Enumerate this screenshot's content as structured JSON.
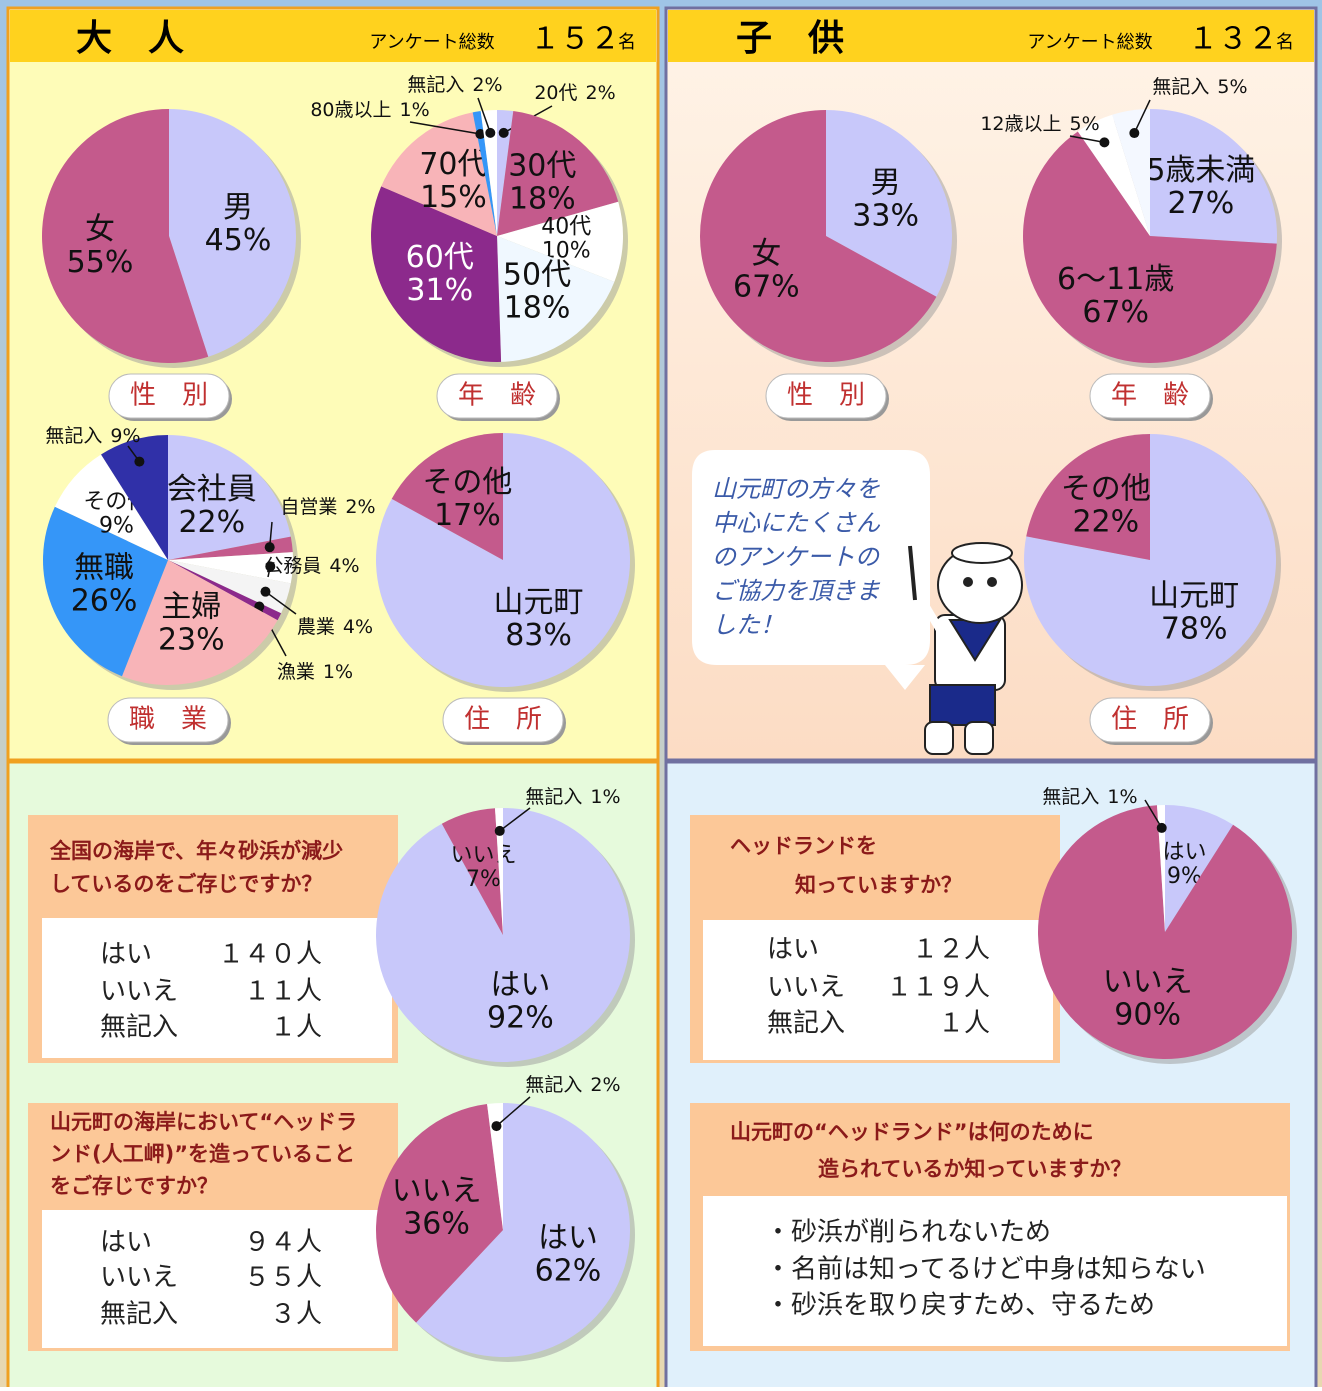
{
  "panels": {
    "adult": {
      "title": "大　人",
      "count_label": "アンケート総数",
      "count": "１５２",
      "unit": "名"
    },
    "child": {
      "title": "子　供",
      "count_label": "アンケート総数",
      "count": "１３２",
      "unit": "名"
    },
    "speech": [
      "山元町の方々を",
      "中心にたくさん",
      "のアンケートの",
      "ご協力を頂きま",
      "した！"
    ],
    "q1": {
      "lines": [
        "全国の海岸で、年々砂浜が減少",
        "しているのをご存じですか？"
      ],
      "rows": [
        [
          "はい",
          "１４０人"
        ],
        [
          "いいえ",
          "１１人"
        ],
        [
          "無記入",
          "１人"
        ]
      ]
    },
    "q2": {
      "lines": [
        "山元町の海岸において“ヘッドラ",
        "ンド(人工岬)”を造っていること",
        "をご存じですか？"
      ],
      "rows": [
        [
          "はい",
          "９４人"
        ],
        [
          "いいえ",
          "５５人"
        ],
        [
          "無記入",
          "３人"
        ]
      ]
    },
    "q3": {
      "lines": [
        "ヘッドランドを",
        "知っていますか？"
      ],
      "rows": [
        [
          "はい",
          "１２人"
        ],
        [
          "いいえ",
          "１１９人"
        ],
        [
          "無記入",
          "１人"
        ]
      ]
    },
    "q4": {
      "lines": [
        "山元町の“ヘッドランド”は何のために",
        "造られているか知っていますか？"
      ],
      "answers": [
        "・砂浜が削られないため",
        "・名前は知ってるけど中身は知らない",
        "・砂浜を取り戻すため、守るため"
      ]
    }
  },
  "chart_data": [
    {
      "type": "pie",
      "title": "性　別",
      "categories": [
        "男",
        "女"
      ],
      "values": [
        45,
        55
      ],
      "value_labels": [
        "45%",
        "55%"
      ],
      "colors": [
        "#c8c8fa",
        "#c45a8c"
      ]
    },
    {
      "type": "pie",
      "title": "年　齢",
      "categories": [
        "20代",
        "30代",
        "40代",
        "50代",
        "60代",
        "70代",
        "80歳以上",
        "無記入"
      ],
      "values": [
        2,
        18,
        10,
        18,
        31,
        15,
        1,
        2
      ],
      "value_labels": [
        "2%",
        "18%",
        "10%",
        "18%",
        "31%",
        "15%",
        "1%",
        "2%"
      ],
      "colors": [
        "#c8c8fa",
        "#c45a8c",
        "#ffffff",
        "#f0f8ff",
        "#8c2a8c",
        "#f8b4b8",
        "#3596f8",
        "#ffffff"
      ]
    },
    {
      "type": "pie",
      "title": "職　業",
      "categories": [
        "会社員",
        "自営業",
        "公務員",
        "農業",
        "漁業",
        "主婦",
        "無職",
        "その他",
        "無記入"
      ],
      "values": [
        22,
        2,
        4,
        4,
        1,
        23,
        26,
        9,
        9
      ],
      "value_labels": [
        "22%",
        "2%",
        "4%",
        "4%",
        "1%",
        "23%",
        "26%",
        "9%",
        "9%"
      ],
      "colors": [
        "#c8c8fa",
        "#c45a8c",
        "#ffffff",
        "#f4f4f4",
        "#8c2a8c",
        "#f8b4b8",
        "#3596f8",
        "#ffffff",
        "#3030a8"
      ]
    },
    {
      "type": "pie",
      "title": "住　所",
      "categories": [
        "山元町",
        "その他"
      ],
      "values": [
        83,
        17
      ],
      "value_labels": [
        "83%",
        "17%"
      ],
      "colors": [
        "#c8c8fa",
        "#c45a8c"
      ]
    },
    {
      "type": "pie",
      "title": "性　別",
      "categories": [
        "男",
        "女"
      ],
      "values": [
        33,
        67
      ],
      "value_labels": [
        "33%",
        "67%"
      ],
      "colors": [
        "#c8c8fa",
        "#c45a8c"
      ]
    },
    {
      "type": "pie",
      "title": "年　齢",
      "categories": [
        "5歳未満",
        "6～11歳",
        "12歳以上",
        "無記入"
      ],
      "values": [
        27,
        67,
        5,
        5
      ],
      "value_labels": [
        "27%",
        "67%",
        "5%",
        "5%"
      ],
      "colors": [
        "#c8c8fa",
        "#c45a8c",
        "#ffffff",
        "#f4f8ff"
      ]
    },
    {
      "type": "pie",
      "title": "住　所",
      "categories": [
        "山元町",
        "その他"
      ],
      "values": [
        78,
        22
      ],
      "value_labels": [
        "78%",
        "22%"
      ],
      "colors": [
        "#c8c8fa",
        "#c45a8c"
      ]
    },
    {
      "type": "pie",
      "categories": [
        "はい",
        "いいえ",
        "無記入"
      ],
      "values": [
        92,
        7,
        1
      ],
      "value_labels": [
        "92%",
        "7%",
        "1%"
      ],
      "colors": [
        "#c8c8fa",
        "#c45a8c",
        "#ffffff"
      ]
    },
    {
      "type": "pie",
      "categories": [
        "はい",
        "いいえ",
        "無記入"
      ],
      "values": [
        62,
        36,
        2
      ],
      "value_labels": [
        "62%",
        "36%",
        "2%"
      ],
      "colors": [
        "#c8c8fa",
        "#c45a8c",
        "#ffffff"
      ]
    },
    {
      "type": "pie",
      "categories": [
        "はい",
        "いいえ",
        "無記入"
      ],
      "values": [
        9,
        90,
        1
      ],
      "value_labels": [
        "9%",
        "90%",
        "1%"
      ],
      "colors": [
        "#c8c8fa",
        "#c45a8c",
        "#ffffff"
      ]
    }
  ]
}
